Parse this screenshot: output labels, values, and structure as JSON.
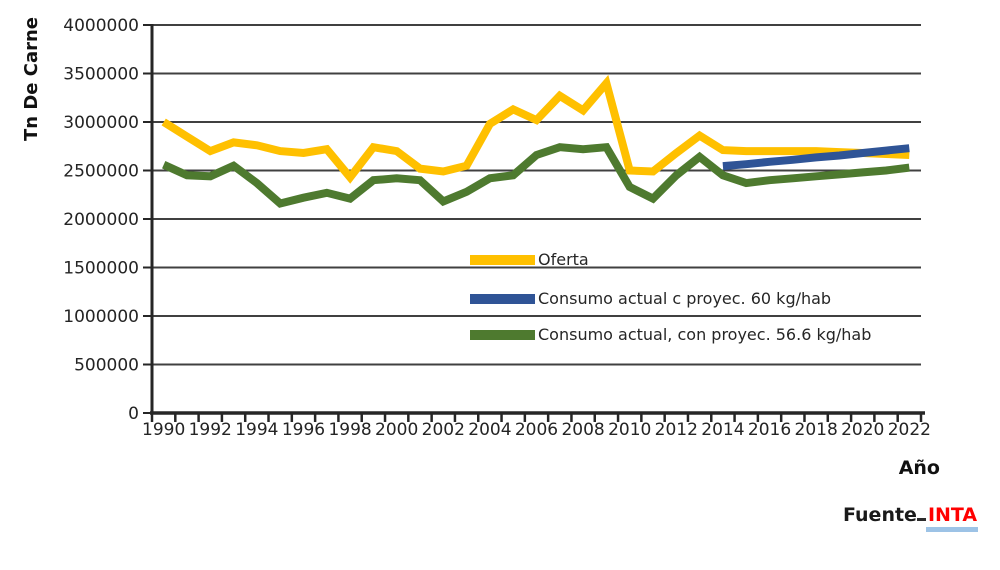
{
  "chart_data": {
    "type": "line",
    "title": "",
    "ylabel": "Tn De Carne",
    "xlabel": "Año",
    "ylim": [
      0,
      4000000
    ],
    "grid": true,
    "legend_position": "inside-center",
    "y_ticks": [
      0,
      500000,
      1000000,
      1500000,
      2000000,
      2500000,
      3000000,
      3500000,
      4000000
    ],
    "y_tick_labels": [
      "0",
      "500000",
      "1000000",
      "1500000",
      "2000000",
      "2500000",
      "3000000",
      "3500000",
      "4000000"
    ],
    "x": [
      1990,
      1991,
      1992,
      1993,
      1994,
      1995,
      1996,
      1997,
      1998,
      1999,
      2000,
      2001,
      2002,
      2003,
      2004,
      2005,
      2006,
      2007,
      2008,
      2009,
      2010,
      2011,
      2012,
      2013,
      2014,
      2015,
      2016,
      2017,
      2018,
      2019,
      2020,
      2021,
      2022
    ],
    "x_tick_labels": [
      "1990",
      "1992",
      "1994",
      "1996",
      "1998",
      "2000",
      "2002",
      "2004",
      "2006",
      "2008",
      "2010",
      "2012",
      "2014",
      "2016",
      "2018",
      "2020",
      "2022"
    ],
    "series": [
      {
        "name": "Oferta",
        "color": "#FFC000",
        "values": [
          3000000,
          2850000,
          2700000,
          2790000,
          2760000,
          2700000,
          2680000,
          2720000,
          2430000,
          2740000,
          2700000,
          2520000,
          2490000,
          2550000,
          2980000,
          3130000,
          3020000,
          3270000,
          3120000,
          3400000,
          2500000,
          2490000,
          2680000,
          2860000,
          2710000,
          2700000,
          2700000,
          2700000,
          2700000,
          2690000,
          2680000,
          2670000,
          2660000
        ]
      },
      {
        "name": "Consumo actual c proyec. 60 kg/hab",
        "color": "#2F5496",
        "values": [
          null,
          null,
          null,
          null,
          null,
          null,
          null,
          null,
          null,
          null,
          null,
          null,
          null,
          null,
          null,
          null,
          null,
          null,
          null,
          null,
          null,
          null,
          null,
          null,
          2545000,
          2565000,
          2590000,
          2610000,
          2635000,
          2655000,
          2680000,
          2705000,
          2730000
        ]
      },
      {
        "name": "Consumo actual, con proyec. 56.6 kg/hab",
        "color": "#4E7A2F",
        "values": [
          2560000,
          2450000,
          2440000,
          2550000,
          2370000,
          2160000,
          2220000,
          2270000,
          2210000,
          2400000,
          2420000,
          2400000,
          2180000,
          2280000,
          2420000,
          2450000,
          2660000,
          2740000,
          2720000,
          2740000,
          2330000,
          2210000,
          2450000,
          2640000,
          2450000,
          2370000,
          2400000,
          2420000,
          2440000,
          2460000,
          2480000,
          2500000,
          2530000
        ]
      }
    ],
    "axis_color": "#262626",
    "gridline_color": "#404040"
  },
  "source": {
    "prefix": "Fuente",
    "org": "INTA",
    "org_color": "#FF0000",
    "underline_color": "#9DC3E6"
  }
}
